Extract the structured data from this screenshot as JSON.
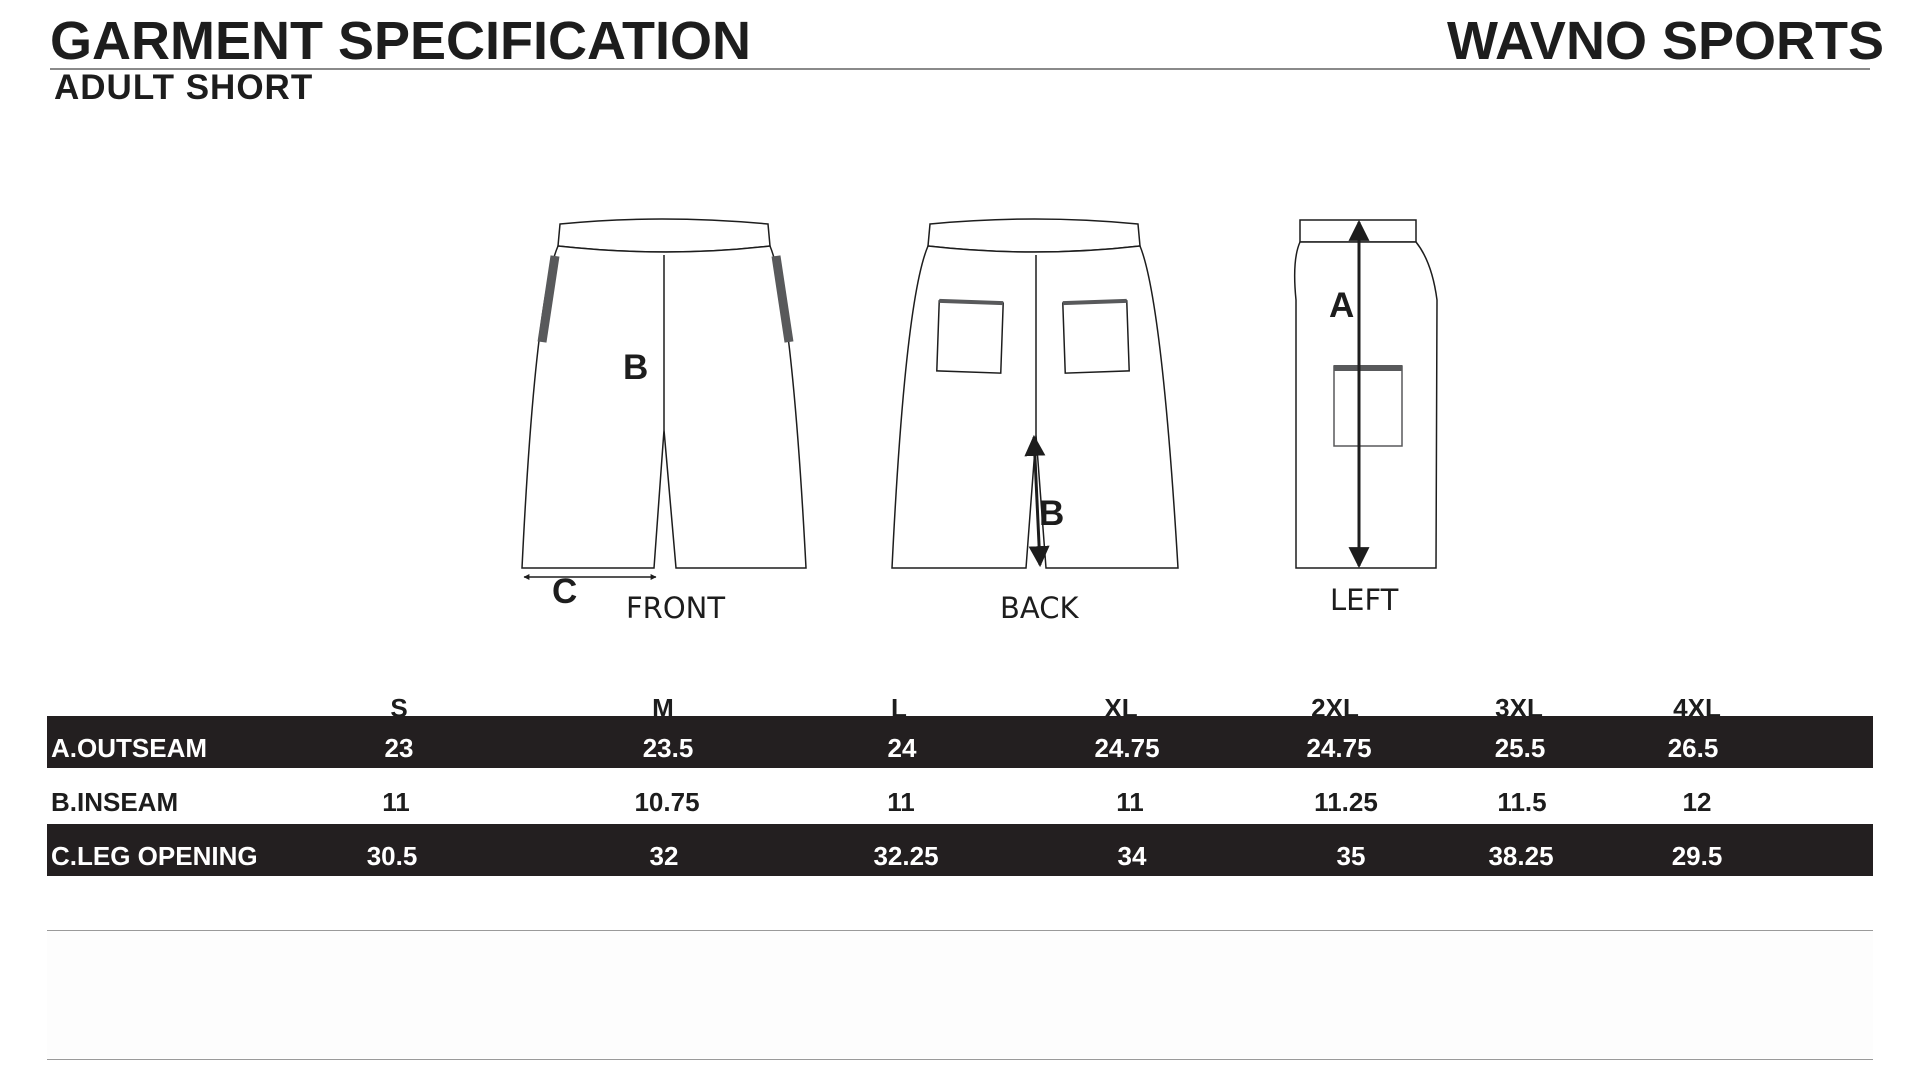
{
  "header": {
    "title": "GARMENT SPECIFICATION",
    "brand": "WAVNO SPORTS",
    "subtitle": "ADULT  SHORT"
  },
  "views": {
    "front": "FRONT",
    "back": "BACK",
    "left": "LEFT"
  },
  "markers": {
    "a": "A",
    "b": "B",
    "c": "C"
  },
  "table": {
    "sizes": [
      "S",
      "M",
      "L",
      "XL",
      "2XL",
      "3XL",
      "4XL"
    ],
    "rows": [
      {
        "label": "A.OUTSEAM",
        "values": [
          "23",
          "23.5",
          "24",
          "24.75",
          "24.75",
          "25.5",
          "26.5"
        ]
      },
      {
        "label": "B.INSEAM",
        "values": [
          "11",
          "10.75",
          "11",
          "11",
          "11.25",
          "11.5",
          "12"
        ]
      },
      {
        "label": "C.LEG OPENING",
        "values": [
          "30.5",
          "32",
          "32.25",
          "34",
          "35",
          "38.25",
          "29.5"
        ]
      }
    ]
  },
  "colors": {
    "dark_row": "#231f20",
    "trim": "#58595b"
  }
}
